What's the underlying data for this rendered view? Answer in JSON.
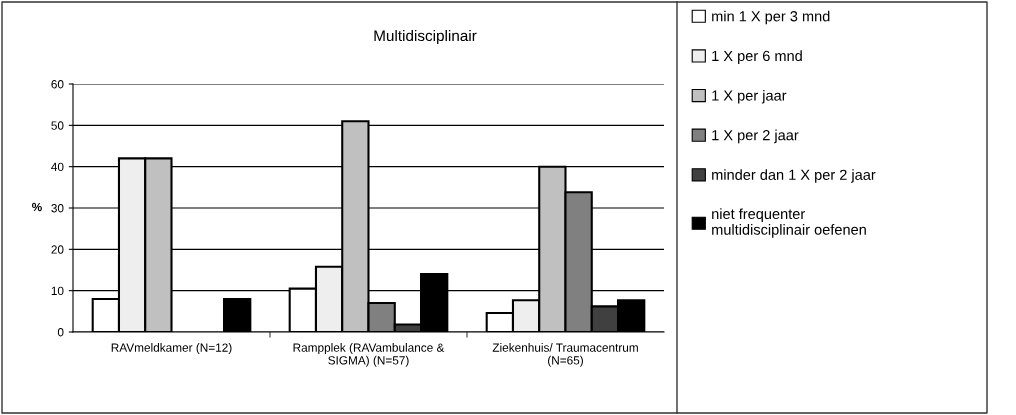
{
  "chart_data": {
    "type": "bar",
    "title": "Multidisciplinair",
    "ylabel": "%",
    "categories": [
      "RAVmeldkamer (N=12)",
      "Rampplek (RAVambulance &\nSIGMA) (N=57)",
      "Ziekenhuis/ Traumacentrum\n(N=65)"
    ],
    "series": [
      {
        "name": "min 1 X per 3 mnd",
        "color": "#ffffff",
        "values": [
          8,
          10.5,
          4.6
        ]
      },
      {
        "name": "1 X per 6 mnd",
        "color": "#eeeeee",
        "values": [
          42,
          15.8,
          7.7
        ]
      },
      {
        "name": "1 X per jaar",
        "color": "#c0c0c0",
        "values": [
          42,
          51,
          40
        ]
      },
      {
        "name": "1 X per 2 jaar",
        "color": "#808080",
        "values": [
          null,
          7,
          33.8
        ]
      },
      {
        "name": "minder dan 1 X per 2 jaar",
        "color": "#404040",
        "values": [
          null,
          1.8,
          6.2
        ]
      },
      {
        "name": "niet frequenter\nmultidisciplinair oefenen",
        "color": "#000000",
        "values": [
          8,
          14,
          7.7
        ]
      }
    ],
    "ylim": [
      0,
      60
    ],
    "yticks": [
      0,
      10,
      20,
      30,
      40,
      50,
      60
    ],
    "grid": "y",
    "legend": "right"
  }
}
